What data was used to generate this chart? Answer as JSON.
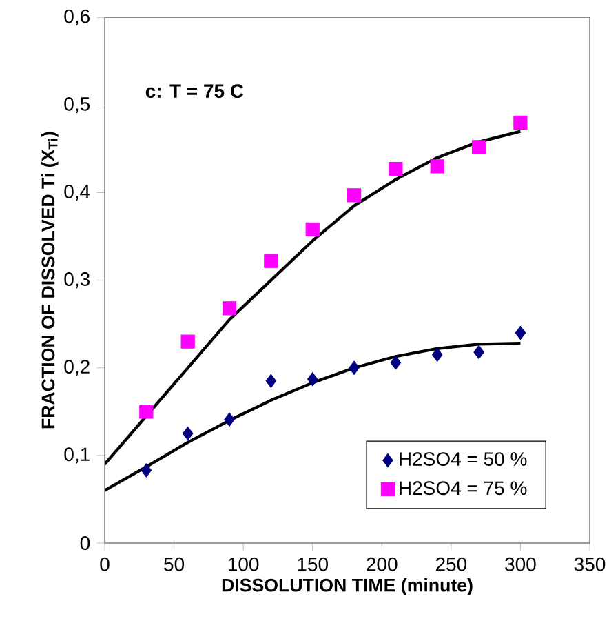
{
  "chart_data": {
    "type": "scatter",
    "xlabel": "DISSOLUTION TIME  (minute)",
    "ylabel": "FRACTION OF DISSOLVED  Ti (X$_{Ti}$)",
    "annotations": [
      "c: T = 75 C"
    ],
    "xlim": [
      0,
      350
    ],
    "xticks": [
      0,
      50,
      100,
      150,
      200,
      250,
      300,
      350
    ],
    "ylim": [
      0,
      0.6
    ],
    "yticks": [
      {
        "value": 0,
        "label": "0"
      },
      {
        "value": 0.1,
        "label": "0,1"
      },
      {
        "value": 0.2,
        "label": "0,2"
      },
      {
        "value": 0.3,
        "label": "0,3"
      },
      {
        "value": 0.4,
        "label": "0,4"
      },
      {
        "value": 0.5,
        "label": "0,5"
      },
      {
        "value": 0.6,
        "label": "0,6"
      }
    ],
    "grid": false,
    "legend": "bottom right",
    "series": [
      {
        "type": "line",
        "color": "#000000",
        "marker": "none",
        "line_style": "solid",
        "x": [
          0,
          30,
          60,
          90,
          120,
          150,
          180,
          210,
          240,
          270,
          300
        ],
        "values": [
          0.06,
          0.087,
          0.115,
          0.14,
          0.163,
          0.183,
          0.2,
          0.213,
          0.222,
          0.227,
          0.228
        ]
      },
      {
        "type": "line",
        "color": "#000000",
        "marker": "none",
        "line_style": "solid",
        "x": [
          0,
          30,
          60,
          90,
          120,
          150,
          180,
          210,
          240,
          270,
          300
        ],
        "values": [
          0.09,
          0.145,
          0.2,
          0.255,
          0.3,
          0.345,
          0.385,
          0.415,
          0.44,
          0.458,
          0.47
        ]
      },
      {
        "name": "H2SO4 = 50 %",
        "color": "#000080",
        "marker": "diamond",
        "x": [
          30,
          60,
          90,
          120,
          150,
          180,
          210,
          240,
          270,
          300
        ],
        "values": [
          0.083,
          0.125,
          0.141,
          0.185,
          0.187,
          0.2,
          0.206,
          0.215,
          0.218,
          0.24
        ]
      },
      {
        "name": "H2SO4 = 75 %",
        "color": "#ff00ff",
        "marker": "square",
        "x": [
          30,
          60,
          90,
          120,
          150,
          180,
          210,
          240,
          270,
          300
        ],
        "values": [
          0.15,
          0.23,
          0.268,
          0.322,
          0.358,
          0.397,
          0.427,
          0.43,
          0.452,
          0.48
        ]
      }
    ]
  }
}
